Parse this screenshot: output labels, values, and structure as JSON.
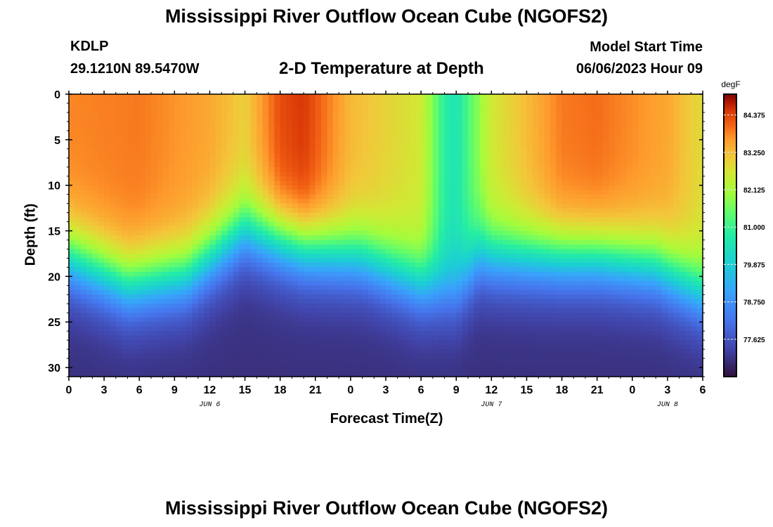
{
  "header": {
    "title": "Mississippi River Outflow Ocean Cube (NGOFS2)",
    "station": "KDLP",
    "coords": "29.1210N  89.5470W",
    "subtitle": "2-D Temperature at Depth",
    "model_label": "Model Start Time",
    "model_time": "06/06/2023 Hour 09"
  },
  "footer": {
    "title": "Mississippi River Outflow Ocean Cube (NGOFS2)"
  },
  "chart_data": {
    "type": "heatmap",
    "title": "2-D Temperature at Depth",
    "xlabel": "Forecast Time(Z)",
    "ylabel": "Depth (ft)",
    "x_ticks": [
      "0",
      "3",
      "6",
      "9",
      "12",
      "15",
      "18",
      "21",
      "0",
      "3",
      "6",
      "9",
      "12",
      "15",
      "18",
      "21",
      "0",
      "3",
      "6"
    ],
    "x_range_hours": [
      0,
      54
    ],
    "date_labels": [
      {
        "text": "JUN 6",
        "hour": 12
      },
      {
        "text": "JUN 7",
        "hour": 36
      },
      {
        "text": "JUN 8",
        "hour": 51
      }
    ],
    "y_ticks": [
      0,
      5,
      10,
      15,
      20,
      25,
      30
    ],
    "ylim": [
      0,
      31
    ],
    "y_inverted": true,
    "colorbar": {
      "unit": "degF",
      "min": 76.5,
      "max": 85.0,
      "ticks": [
        "84.375",
        "83.250",
        "82.125",
        "81.000",
        "79.875",
        "78.750",
        "77.625"
      ],
      "tick_values": [
        84.375,
        83.25,
        82.125,
        81.0,
        79.875,
        78.75,
        77.625
      ]
    },
    "surface_temps_degF": [
      {
        "hour": 0,
        "value": 83.8
      },
      {
        "hour": 6,
        "value": 83.9
      },
      {
        "hour": 12,
        "value": 83.5
      },
      {
        "hour": 15,
        "value": 83.0
      },
      {
        "hour": 18,
        "value": 84.3
      },
      {
        "hour": 20,
        "value": 84.5
      },
      {
        "hour": 24,
        "value": 83.3
      },
      {
        "hour": 30,
        "value": 82.6
      },
      {
        "hour": 32,
        "value": 80.8
      },
      {
        "hour": 33,
        "value": 80.5
      },
      {
        "hour": 36,
        "value": 82.6
      },
      {
        "hour": 42,
        "value": 83.9
      },
      {
        "hour": 45,
        "value": 84.0
      },
      {
        "hour": 51,
        "value": 83.5
      },
      {
        "hour": 54,
        "value": 82.8
      }
    ],
    "thermocline_depth_ft": [
      {
        "hour": 0,
        "value": 18
      },
      {
        "hour": 5,
        "value": 21
      },
      {
        "hour": 10,
        "value": 20
      },
      {
        "hour": 15,
        "value": 15
      },
      {
        "hour": 20,
        "value": 17
      },
      {
        "hour": 25,
        "value": 18
      },
      {
        "hour": 30,
        "value": 21
      },
      {
        "hour": 33,
        "value": 22
      },
      {
        "hour": 35,
        "value": 18
      },
      {
        "hour": 40,
        "value": 18
      },
      {
        "hour": 45,
        "value": 18
      },
      {
        "hour": 50,
        "value": 19
      },
      {
        "hour": 54,
        "value": 22
      }
    ],
    "bottom_temp_degF": 77.0
  }
}
